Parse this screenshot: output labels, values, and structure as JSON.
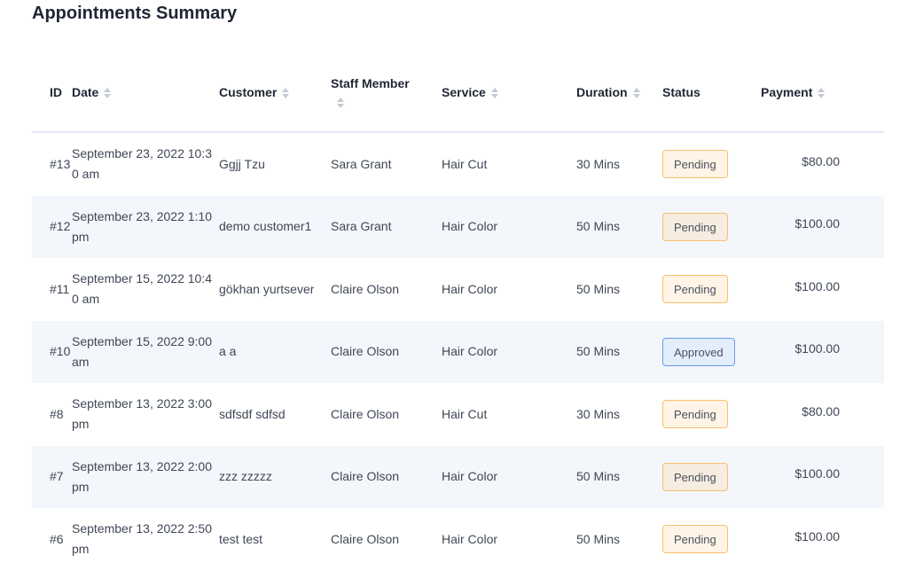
{
  "title": "Appointments Summary",
  "columns": {
    "id": "ID",
    "date": "Date",
    "customer": "Customer",
    "staff": "Staff Member",
    "service": "Service",
    "duration": "Duration",
    "status": "Status",
    "payment": "Payment"
  },
  "colors": {
    "pending_border": "#f6c06a",
    "approved_border": "#6c9ceb",
    "row_alt": "#f3f6fb"
  },
  "rows": [
    {
      "id": "#13",
      "date": "September 23, 2022 10:30 am",
      "customer": "Ggjj Tzu",
      "staff": "Sara Grant",
      "service": "Hair Cut",
      "duration": "30 Mins",
      "status": "Pending",
      "payment": "$80.00"
    },
    {
      "id": "#12",
      "date": "September 23, 2022 1:10 pm",
      "customer": "demo customer1",
      "staff": "Sara Grant",
      "service": "Hair Color",
      "duration": "50 Mins",
      "status": "Pending",
      "payment": "$100.00"
    },
    {
      "id": "#11",
      "date": "September 15, 2022 10:40 am",
      "customer": "gökhan yurtsever",
      "staff": "Claire Olson",
      "service": "Hair Color",
      "duration": "50 Mins",
      "status": "Pending",
      "payment": "$100.00"
    },
    {
      "id": "#10",
      "date": "September 15, 2022 9:00 am",
      "customer": "a a",
      "staff": "Claire Olson",
      "service": "Hair Color",
      "duration": "50 Mins",
      "status": "Approved",
      "payment": "$100.00"
    },
    {
      "id": "#8",
      "date": "September 13, 2022 3:00 pm",
      "customer": "sdfsdf sdfsd",
      "staff": "Claire Olson",
      "service": "Hair Cut",
      "duration": "30 Mins",
      "status": "Pending",
      "payment": "$80.00"
    },
    {
      "id": "#7",
      "date": "September 13, 2022 2:00 pm",
      "customer": "zzz zzzzz",
      "staff": "Claire Olson",
      "service": "Hair Color",
      "duration": "50 Mins",
      "status": "Pending",
      "payment": "$100.00"
    },
    {
      "id": "#6",
      "date": "September 13, 2022 2:50 pm",
      "customer": "test test",
      "staff": "Claire Olson",
      "service": "Hair Color",
      "duration": "50 Mins",
      "status": "Pending",
      "payment": "$100.00"
    }
  ]
}
